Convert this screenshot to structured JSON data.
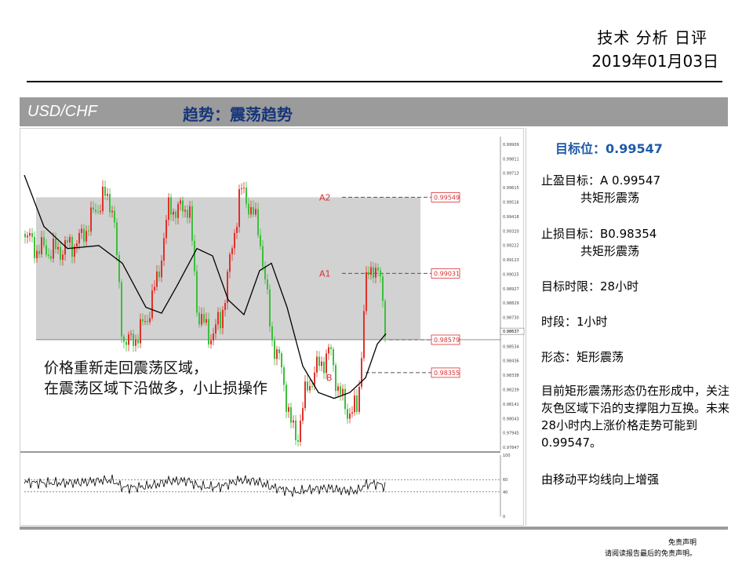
{
  "header": {
    "title": "技术 分析 日评",
    "date": "2019年01月03日"
  },
  "bar": {
    "pair": "USD/CHF",
    "trend": "趋势：震荡趋势"
  },
  "panel": {
    "target": "目标位：0.99547",
    "take_profit_label": "止盈目标：A 0.99547",
    "take_profit_note": "共矩形震荡",
    "stop_loss_label": "止损目标：B0.98354",
    "stop_loss_note": "共矩形震荡",
    "time_limit": "目标时限：28小时",
    "period": "时段：1小时",
    "pattern": "形态：矩形震荡",
    "summary": "目前矩形震荡形态仍在形成中，关注灰色区域下沿的支撑阻力互换。未来28小时内上涨价格走势可能到0.99547。",
    "conclusion": "由移动平均线向上增强"
  },
  "chart_data": {
    "type": "candlestick",
    "period": "1小时",
    "y_axis_ticks": [
      "0.99909",
      "0.99811",
      "0.99713",
      "0.99615",
      "0.99516",
      "0.99418",
      "0.99320",
      "0.99222",
      "0.99123",
      "0.99025",
      "0.98927",
      "0.98829",
      "0.98730",
      "0.98632",
      "0.98534",
      "0.98436",
      "0.98338",
      "0.98239",
      "0.98141",
      "0.98043",
      "0.97945",
      "0.97847"
    ],
    "current_price": "0.98637",
    "rectangle": {
      "upper": 0.99549,
      "lower": 0.98579
    },
    "levels": [
      {
        "label": "A2",
        "value": "0.99549"
      },
      {
        "label": "A1",
        "value": "0.99031"
      },
      {
        "label": "",
        "value": "0.98579"
      },
      {
        "label": "B",
        "value": "0.98355"
      }
    ],
    "annotation": [
      "价格重新走回震荡区域，",
      "在震荡区域下沿做多，小止损操作"
    ],
    "oscillator_ticks": [
      "100",
      "60",
      "40",
      "0"
    ],
    "colors": {
      "up": "#e0302a",
      "down": "#3cbf3c",
      "ma": "#000000",
      "zone": "#d2d2d2",
      "level": "#d83030"
    }
  },
  "footer": {
    "line1": "免责声明",
    "line2": "请阅读报告最后的免责声明。"
  }
}
